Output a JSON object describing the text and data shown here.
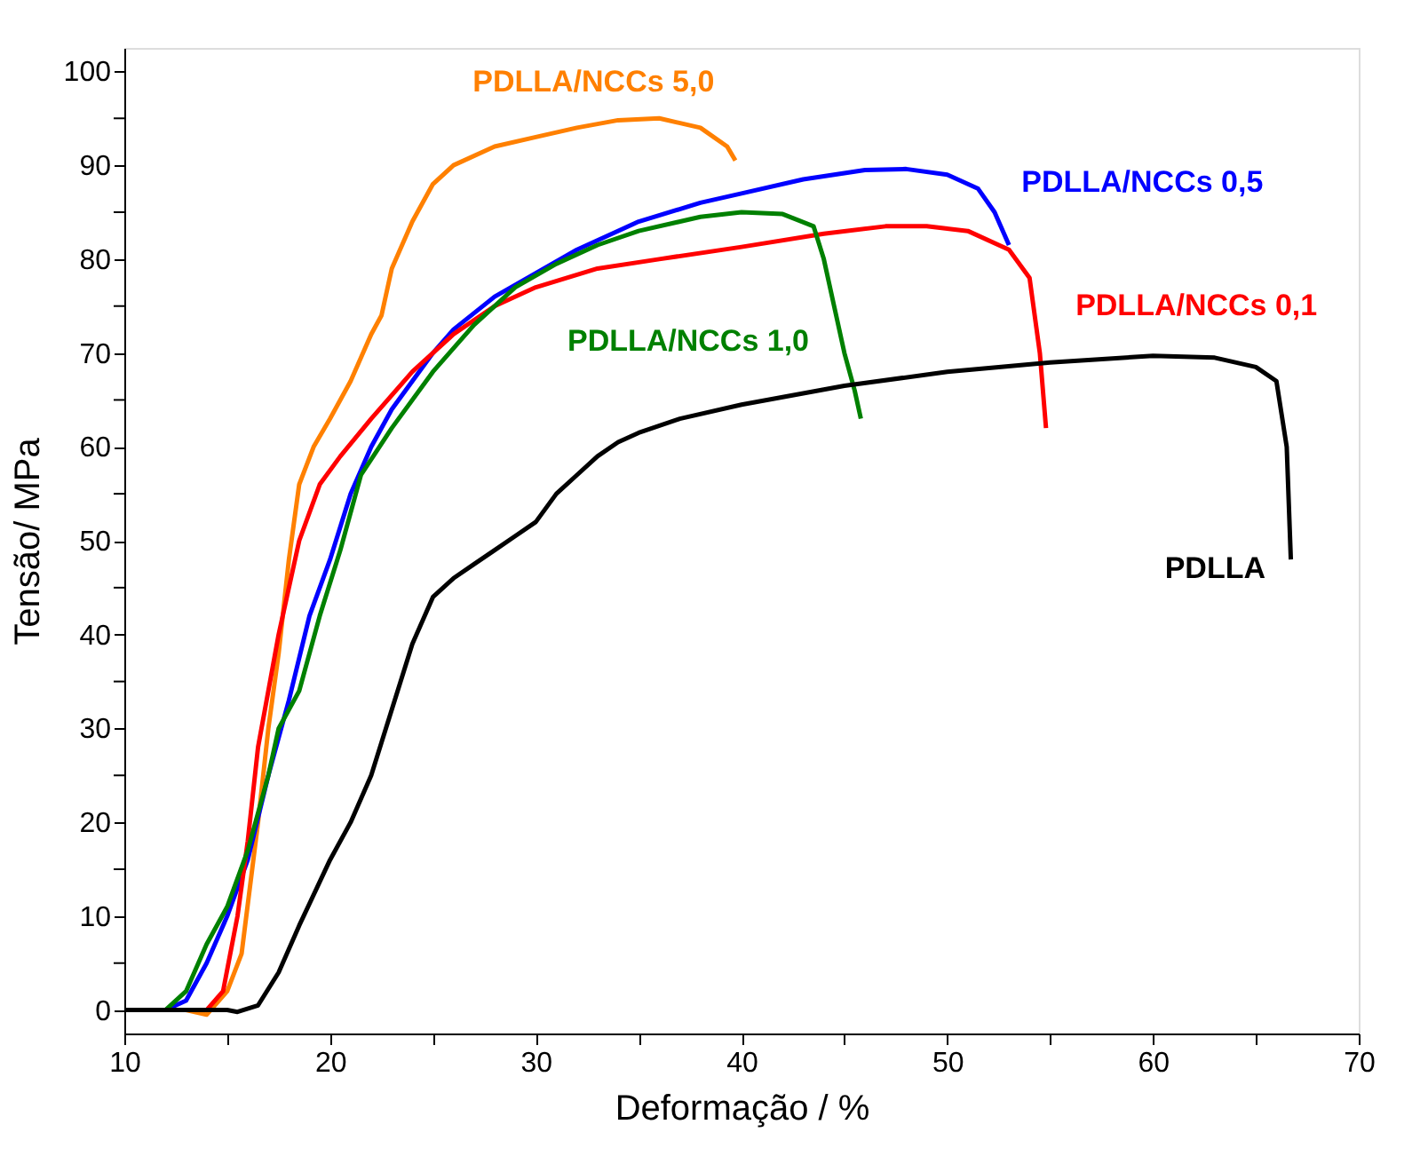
{
  "chart_data": {
    "type": "line",
    "xlabel": "Deformação / %",
    "ylabel": "Tensão/ MPa",
    "xlim": [
      10,
      70
    ],
    "ylim": [
      -2.5,
      102.5
    ],
    "xticks": [
      10,
      {
        "value": 15,
        "label": null
      },
      20,
      {
        "value": 25,
        "label": null
      },
      30,
      {
        "value": 35,
        "label": null
      },
      40,
      {
        "value": 45,
        "label": null
      },
      50,
      {
        "value": 55,
        "label": null
      },
      60,
      {
        "value": 65,
        "label": null
      },
      70
    ],
    "yticks": [
      0,
      {
        "value": 5,
        "label": null
      },
      10,
      {
        "value": 15,
        "label": null
      },
      20,
      {
        "value": 25,
        "label": null
      },
      30,
      {
        "value": 35,
        "label": null
      },
      40,
      {
        "value": 45,
        "label": null
      },
      50,
      {
        "value": 55,
        "label": null
      },
      60,
      {
        "value": 65,
        "label": null
      },
      70,
      {
        "value": 75,
        "label": null
      },
      80,
      {
        "value": 85,
        "label": null
      },
      90,
      {
        "value": 95,
        "label": null
      },
      100
    ],
    "grid": false,
    "legend": false,
    "marker": "none",
    "line_style": "solid",
    "series": [
      {
        "name": "PDLLA/NCCs 5,0",
        "color": "#ff8000",
        "x": [
          10,
          13,
          14,
          15,
          15.7,
          16.5,
          17,
          17.5,
          18,
          18.5,
          19.2,
          20,
          21,
          22,
          22.5,
          23,
          24,
          25,
          26,
          28,
          30,
          32,
          34,
          36,
          38,
          39.3,
          39.7
        ],
        "values": [
          0,
          0,
          -0.5,
          2,
          6,
          20,
          30,
          38,
          48,
          56,
          60,
          63,
          67,
          72,
          74,
          79,
          84,
          88,
          90,
          92,
          93,
          94,
          94.8,
          95,
          94,
          92,
          90.5
        ]
      },
      {
        "name": "PDLLA/NCCs 0,5",
        "color": "#0000ff",
        "x": [
          10,
          12,
          13,
          14,
          15,
          16,
          17,
          18,
          19,
          20,
          21,
          22,
          23,
          24,
          25,
          26,
          28,
          30,
          32,
          35,
          38,
          40,
          43,
          46,
          48,
          50,
          51.5,
          52.3,
          53
        ],
        "values": [
          0,
          0,
          1,
          5,
          10,
          16,
          25,
          33,
          42,
          48,
          55,
          60,
          64,
          67,
          70,
          72.5,
          76,
          78.5,
          81,
          84,
          86,
          87,
          88.5,
          89.5,
          89.6,
          89,
          87.5,
          85,
          81.5
        ]
      },
      {
        "name": "PDLLA/NCCs 0,1",
        "color": "#ff0000",
        "x": [
          10,
          13,
          14,
          14.8,
          15.5,
          16,
          16.5,
          17.5,
          18.5,
          19.5,
          20.5,
          22,
          24,
          26,
          28,
          30,
          33,
          36,
          40,
          44,
          47,
          49,
          51,
          53,
          54,
          54.5,
          54.8
        ],
        "values": [
          0,
          0,
          0,
          2,
          10,
          18,
          28,
          40,
          50,
          56,
          59,
          63,
          68,
          72,
          75,
          77,
          79,
          80,
          81.3,
          82.7,
          83.5,
          83.5,
          83,
          81,
          78,
          70,
          62
        ]
      },
      {
        "name": "PDLLA/NCCs 1,0",
        "color": "#008000",
        "x": [
          10,
          12,
          13,
          14,
          15,
          16,
          17,
          17.5,
          18.5,
          19.5,
          20.5,
          21.5,
          23,
          25,
          27,
          29,
          31,
          33,
          35,
          38,
          40,
          42,
          43.5,
          44,
          44.5,
          45,
          45.5,
          45.8
        ],
        "values": [
          0,
          0,
          2,
          7,
          11,
          17,
          25,
          30,
          34,
          42,
          49,
          57,
          62,
          68,
          73,
          77,
          79.5,
          81.5,
          83,
          84.5,
          85,
          84.8,
          83.5,
          80,
          75,
          70,
          66,
          63
        ]
      },
      {
        "name": "PDLLA",
        "color": "#000000",
        "x": [
          10,
          15,
          15.5,
          16.5,
          17.5,
          18.5,
          20,
          21,
          22,
          23,
          24,
          25,
          26,
          27,
          28,
          29,
          30,
          31,
          32,
          33,
          34,
          35,
          37,
          40,
          45,
          50,
          55,
          60,
          63,
          65,
          66,
          66.5,
          66.7
        ],
        "values": [
          0,
          0,
          -0.2,
          0.5,
          4,
          9,
          16,
          20,
          25,
          32,
          39,
          44,
          46,
          47.5,
          49,
          50.5,
          52,
          55,
          57,
          59,
          60.5,
          61.5,
          63,
          64.5,
          66.5,
          68,
          69,
          69.7,
          69.5,
          68.5,
          67,
          60,
          48
        ]
      }
    ]
  }
}
